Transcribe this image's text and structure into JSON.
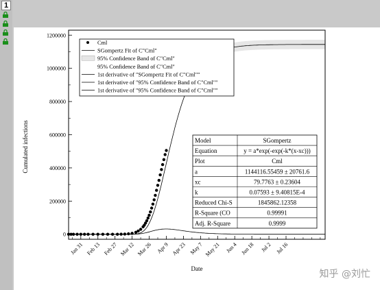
{
  "window": {
    "page_number": "1",
    "layer_icons": [
      "lock-icon",
      "lock-icon",
      "lock-icon",
      "lock-icon"
    ],
    "watermark": "知乎 @刘忙"
  },
  "chart_data": {
    "type": "scatter",
    "xlabel": "Date",
    "ylabel": "Cumulated infections",
    "xlim": [
      0,
      210
    ],
    "ylim": [
      -30000,
      1230000
    ],
    "grid": false,
    "legend_position": "top-left",
    "x_tick_labels": [
      "Jan 31",
      "Feb 13",
      "Feb 27",
      "Mar 12",
      "Mar 26",
      "Apr 9",
      "Apr 23",
      "May 7",
      "May 21",
      "Jun 4",
      "Jun 18",
      "Jul 2",
      "Jul 16"
    ],
    "x_tick_positions": [
      10,
      24,
      38,
      52,
      66,
      80,
      94,
      108,
      122,
      136,
      150,
      164,
      178
    ],
    "y_ticks": [
      0,
      200000,
      400000,
      600000,
      800000,
      1000000,
      1200000
    ],
    "y_tick_labels": [
      "0",
      "200000",
      "400000",
      "600000",
      "800000",
      "1000000",
      "1200000"
    ],
    "scatter_series": {
      "name": "Cml",
      "x": [
        0,
        2,
        4,
        7,
        10,
        13,
        16,
        20,
        24,
        28,
        32,
        36,
        40,
        43,
        46,
        49,
        52,
        55,
        57,
        59,
        61,
        62,
        63,
        64,
        65,
        66,
        67,
        68,
        69,
        70,
        71,
        72,
        73,
        74,
        75,
        76,
        77,
        78,
        79,
        80
      ],
      "y": [
        0,
        0,
        0,
        0,
        0,
        0,
        0,
        0,
        0,
        0,
        0,
        0,
        0,
        500,
        1200,
        3000,
        6000,
        12000,
        20000,
        30000,
        45000,
        55000,
        68000,
        82000,
        98000,
        115000,
        135000,
        158000,
        182000,
        208000,
        235000,
        265000,
        295000,
        325000,
        358000,
        390000,
        420000,
        450000,
        480000,
        505000
      ]
    },
    "fit_params": {
      "a": 1144116.55,
      "xc": 79.7763,
      "k": 0.07593
    },
    "legend": [
      {
        "symbol": "dot",
        "label": "Cml"
      },
      {
        "symbol": "line",
        "label": "SGompertz Fit of C\"Cml\""
      },
      {
        "symbol": "band",
        "label": "95% Confidence Band of C\"Cml\""
      },
      {
        "symbol": "none",
        "label": "95% Confidence Band of C\"Cml\""
      },
      {
        "symbol": "line",
        "label": "1st derivative of \"SGompertz Fit of C\"Cml\"\""
      },
      {
        "symbol": "line",
        "label": "1st derivative of \"95% Confidence Band of C\"Cml\"\""
      },
      {
        "symbol": "line",
        "label": "1st derivative of \"95% Confidence Band of C\"Cml\"\""
      }
    ],
    "stats_table": [
      [
        "Model",
        "SGompertz"
      ],
      [
        "Equation",
        "y = a*exp(-exp(-k*(x-xc)))"
      ],
      [
        "Plot",
        "Cml"
      ],
      [
        "a",
        "1144116.55459 ± 20761.6"
      ],
      [
        "xc",
        "79.7763 ± 0.23604"
      ],
      [
        "k",
        "0.07593 ± 9.40815E-4"
      ],
      [
        "Reduced Chi-S",
        "1845862.12358"
      ],
      [
        "R-Square (CO",
        "0.99991"
      ],
      [
        "Adj. R-Square",
        "0.9999"
      ]
    ]
  }
}
